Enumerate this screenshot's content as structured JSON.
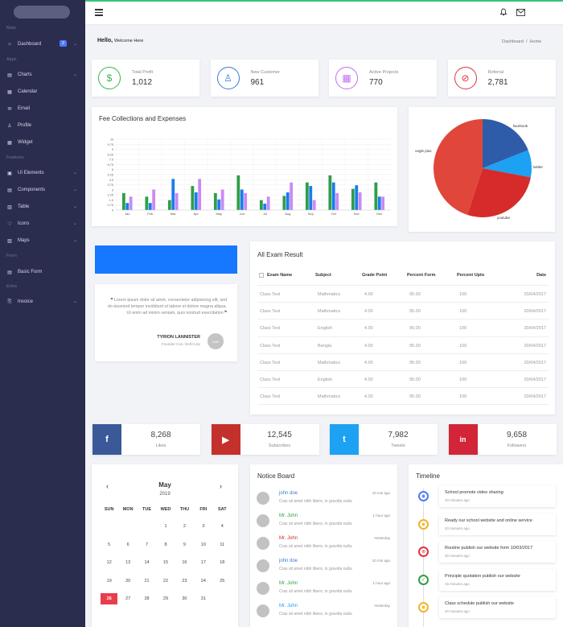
{
  "sidebar": {
    "sections": [
      "Main",
      "Apps",
      "Features",
      "Form",
      "Extra"
    ],
    "items": [
      {
        "label": "Dashboard",
        "icon": "home-icon",
        "badge": "2",
        "chev": true
      },
      {
        "label": "Charts",
        "icon": "chart-icon",
        "chev": true
      },
      {
        "label": "Calendar",
        "icon": "calendar-icon"
      },
      {
        "label": "Email",
        "icon": "email-icon"
      },
      {
        "label": "Profile",
        "icon": "user-icon"
      },
      {
        "label": "Widget",
        "icon": "widget-icon"
      },
      {
        "label": "UI Elements",
        "icon": "ui-icon",
        "chev": true
      },
      {
        "label": "Components",
        "icon": "components-icon",
        "chev": true
      },
      {
        "label": "Table",
        "icon": "table-icon",
        "chev": true
      },
      {
        "label": "Icons",
        "icon": "heart-icon",
        "chev": true
      },
      {
        "label": "Maps",
        "icon": "map-icon",
        "chev": true
      },
      {
        "label": "Basic Form",
        "icon": "form-icon"
      },
      {
        "label": "Invoice",
        "icon": "invoice-icon",
        "chev": true
      }
    ]
  },
  "header": {
    "welcome": "Hello,",
    "welcome_sub": "Welcome Here",
    "breadcrumb": "Dashboard  /  Home"
  },
  "stats": [
    {
      "label": "Total Profit",
      "value": "1,012",
      "color": "#3ab54a",
      "icon": "dollar-icon"
    },
    {
      "label": "New Customer",
      "value": "961",
      "color": "#3a7bd5",
      "icon": "user-icon"
    },
    {
      "label": "Active Projects",
      "value": "770",
      "color": "#c56cf0",
      "icon": "grid-icon"
    },
    {
      "label": "Referral",
      "value": "2,781",
      "color": "#e0333e",
      "icon": "link-icon"
    }
  ],
  "fee_chart": {
    "title": "Fee Collections and Expenses",
    "colors": [
      "#2e9e48",
      "#1a7cef",
      "#c98af5"
    ],
    "chart_data": {
      "type": "bar",
      "title": "Fee Collections and Expenses",
      "categories": [
        "Jan",
        "Feb",
        "Mar",
        "Apr",
        "May",
        "Jun",
        "Jul",
        "Aug",
        "Sep",
        "Oct",
        "Nov",
        "Dec"
      ],
      "yticks": [
        "0",
        "0.75",
        "1.5",
        "2.25",
        "3",
        "3.75",
        "4.5",
        "5.25",
        "6",
        "6.75",
        "7.5",
        "8.25",
        "9",
        "9.75",
        "1k"
      ],
      "series": [
        {
          "values": [
            2.4,
            1.9,
            1.4,
            3.4,
            2.4,
            4.9,
            1.4,
            2.0,
            3.9,
            4.9,
            3.0,
            3.9
          ]
        },
        {
          "values": [
            1.0,
            1.0,
            4.4,
            2.5,
            1.5,
            2.9,
            0.9,
            2.5,
            3.4,
            3.9,
            3.5,
            1.9
          ]
        },
        {
          "values": [
            1.9,
            2.9,
            2.4,
            4.4,
            2.9,
            2.4,
            1.9,
            3.9,
            1.4,
            2.4,
            2.5,
            1.9
          ]
        }
      ],
      "ylim": [
        0,
        10
      ]
    }
  },
  "pie": {
    "chart_data": {
      "type": "pie",
      "labels": [
        "facebook",
        "twitter",
        "youtube",
        "oogle plus"
      ],
      "values": [
        19,
        9,
        27,
        45
      ],
      "colors": [
        "#2f5ca8",
        "#1da1f2",
        "#d62b2b",
        "#e0473a"
      ]
    }
  },
  "quote": {
    "text": "Lorem ipsum dolor sit amet, consectetur adipisicing elit, sed do eiusmod tempor incididunt ut labore et dolore magna aliqua. Ut enim ad minim veniam, quis nostrud exercitation",
    "author": "TYRION LANNISTER",
    "role": "Founder-Ceo. Dell-Corp",
    "avatar": "Nobi"
  },
  "exam": {
    "title": "All Exam Result",
    "columns": [
      "Exam Name",
      "Subject",
      "Grade Point",
      "Percent Form",
      "Percent Upto",
      "Date"
    ],
    "rows": [
      [
        "Class Test",
        "Mathmatics",
        "4.00",
        "95.00",
        "100",
        "20/04/2017"
      ],
      [
        "Class Test",
        "Mathmatics",
        "4.00",
        "95.00",
        "100",
        "20/04/2017"
      ],
      [
        "Class Test",
        "English",
        "4.00",
        "95.00",
        "100",
        "20/04/2017"
      ],
      [
        "Class Test",
        "Bangla",
        "4.00",
        "95.00",
        "100",
        "20/04/2017"
      ],
      [
        "Class Test",
        "Mathmatics",
        "4.00",
        "95.00",
        "100",
        "20/04/2017"
      ],
      [
        "Class Test",
        "English",
        "4.00",
        "95.00",
        "100",
        "20/04/2017"
      ],
      [
        "Class Test",
        "Mathmatics",
        "4.00",
        "95.00",
        "100",
        "20/04/2017"
      ]
    ]
  },
  "social": [
    {
      "count": "8,268",
      "label": "Likes",
      "color": "#3b5998",
      "glyph": "f",
      "icon": "facebook-icon"
    },
    {
      "count": "12,545",
      "label": "Subscribes",
      "color": "#c4302b",
      "glyph": "▶",
      "icon": "youtube-icon"
    },
    {
      "count": "7,982",
      "label": "Tweets",
      "color": "#1da1f2",
      "glyph": "t",
      "icon": "twitter-icon"
    },
    {
      "count": "9,658",
      "label": "Followers",
      "color": "#d22638",
      "glyph": "in",
      "icon": "linkedin-icon"
    }
  ],
  "calendar": {
    "month": "May",
    "year": "2019",
    "weekdays": [
      "SUN",
      "MON",
      "TUE",
      "WED",
      "THU",
      "FRI",
      "SAT"
    ],
    "weeks": [
      [
        "",
        "",
        "",
        "1",
        "2",
        "3",
        "4"
      ],
      [
        "5",
        "6",
        "7",
        "8",
        "9",
        "10",
        "11"
      ],
      [
        "12",
        "13",
        "14",
        "15",
        "16",
        "17",
        "18"
      ],
      [
        "19",
        "20",
        "21",
        "22",
        "23",
        "24",
        "25"
      ],
      [
        "26",
        "27",
        "28",
        "29",
        "30",
        "31",
        ""
      ]
    ],
    "today": "26",
    "accent": "#e83e4c"
  },
  "notice": {
    "title": "Notice Board",
    "items": [
      {
        "name": "john doe",
        "color": "#3a7bd5",
        "time": "10 min ago",
        "text": "Cras sit amet nibh libero, in gravida nulla."
      },
      {
        "name": "Mr. John",
        "color": "#2e9e48",
        "time": "1 hour ago",
        "text": "Cras sit amet nibh libero, in gravida nulla."
      },
      {
        "name": "Mr. John",
        "color": "#d62b2b",
        "time": "Yesterday",
        "text": "Cras sit amet nibh libero, in gravida nulla."
      },
      {
        "name": "john doe",
        "color": "#3a7bd5",
        "time": "10 min ago",
        "text": "Cras sit amet nibh libero, in gravida nulla."
      },
      {
        "name": "Mr. John",
        "color": "#2e9e48",
        "time": "1 hour ago",
        "text": "Cras sit amet nibh libero, in gravida nulla."
      },
      {
        "name": "Mr. John",
        "color": "#1da1f2",
        "time": "Yesterday",
        "text": "Cras sit amet nibh libero, in gravida nulla."
      }
    ]
  },
  "timeline": {
    "title": "Timeline",
    "items": [
      {
        "title": "School promote video sharing",
        "sub": "10 minutes ago",
        "color": "#4a7cf7",
        "glyph": "◉"
      },
      {
        "title": "Ready our school website and online service",
        "sub": "20 minutes ago",
        "color": "#f0b429",
        "glyph": "◉"
      },
      {
        "title": "Routine publish our website form 10/03/2017",
        "sub": "30 minutes ago",
        "color": "#e0333e",
        "glyph": "⊗"
      },
      {
        "title": "Principle quotation publish our website",
        "sub": "15 minutes ago",
        "color": "#2e9e48",
        "glyph": "✓"
      },
      {
        "title": "Class schedule publish our website",
        "sub": "20 minutes ago",
        "color": "#f0b429",
        "glyph": "◉"
      }
    ]
  }
}
